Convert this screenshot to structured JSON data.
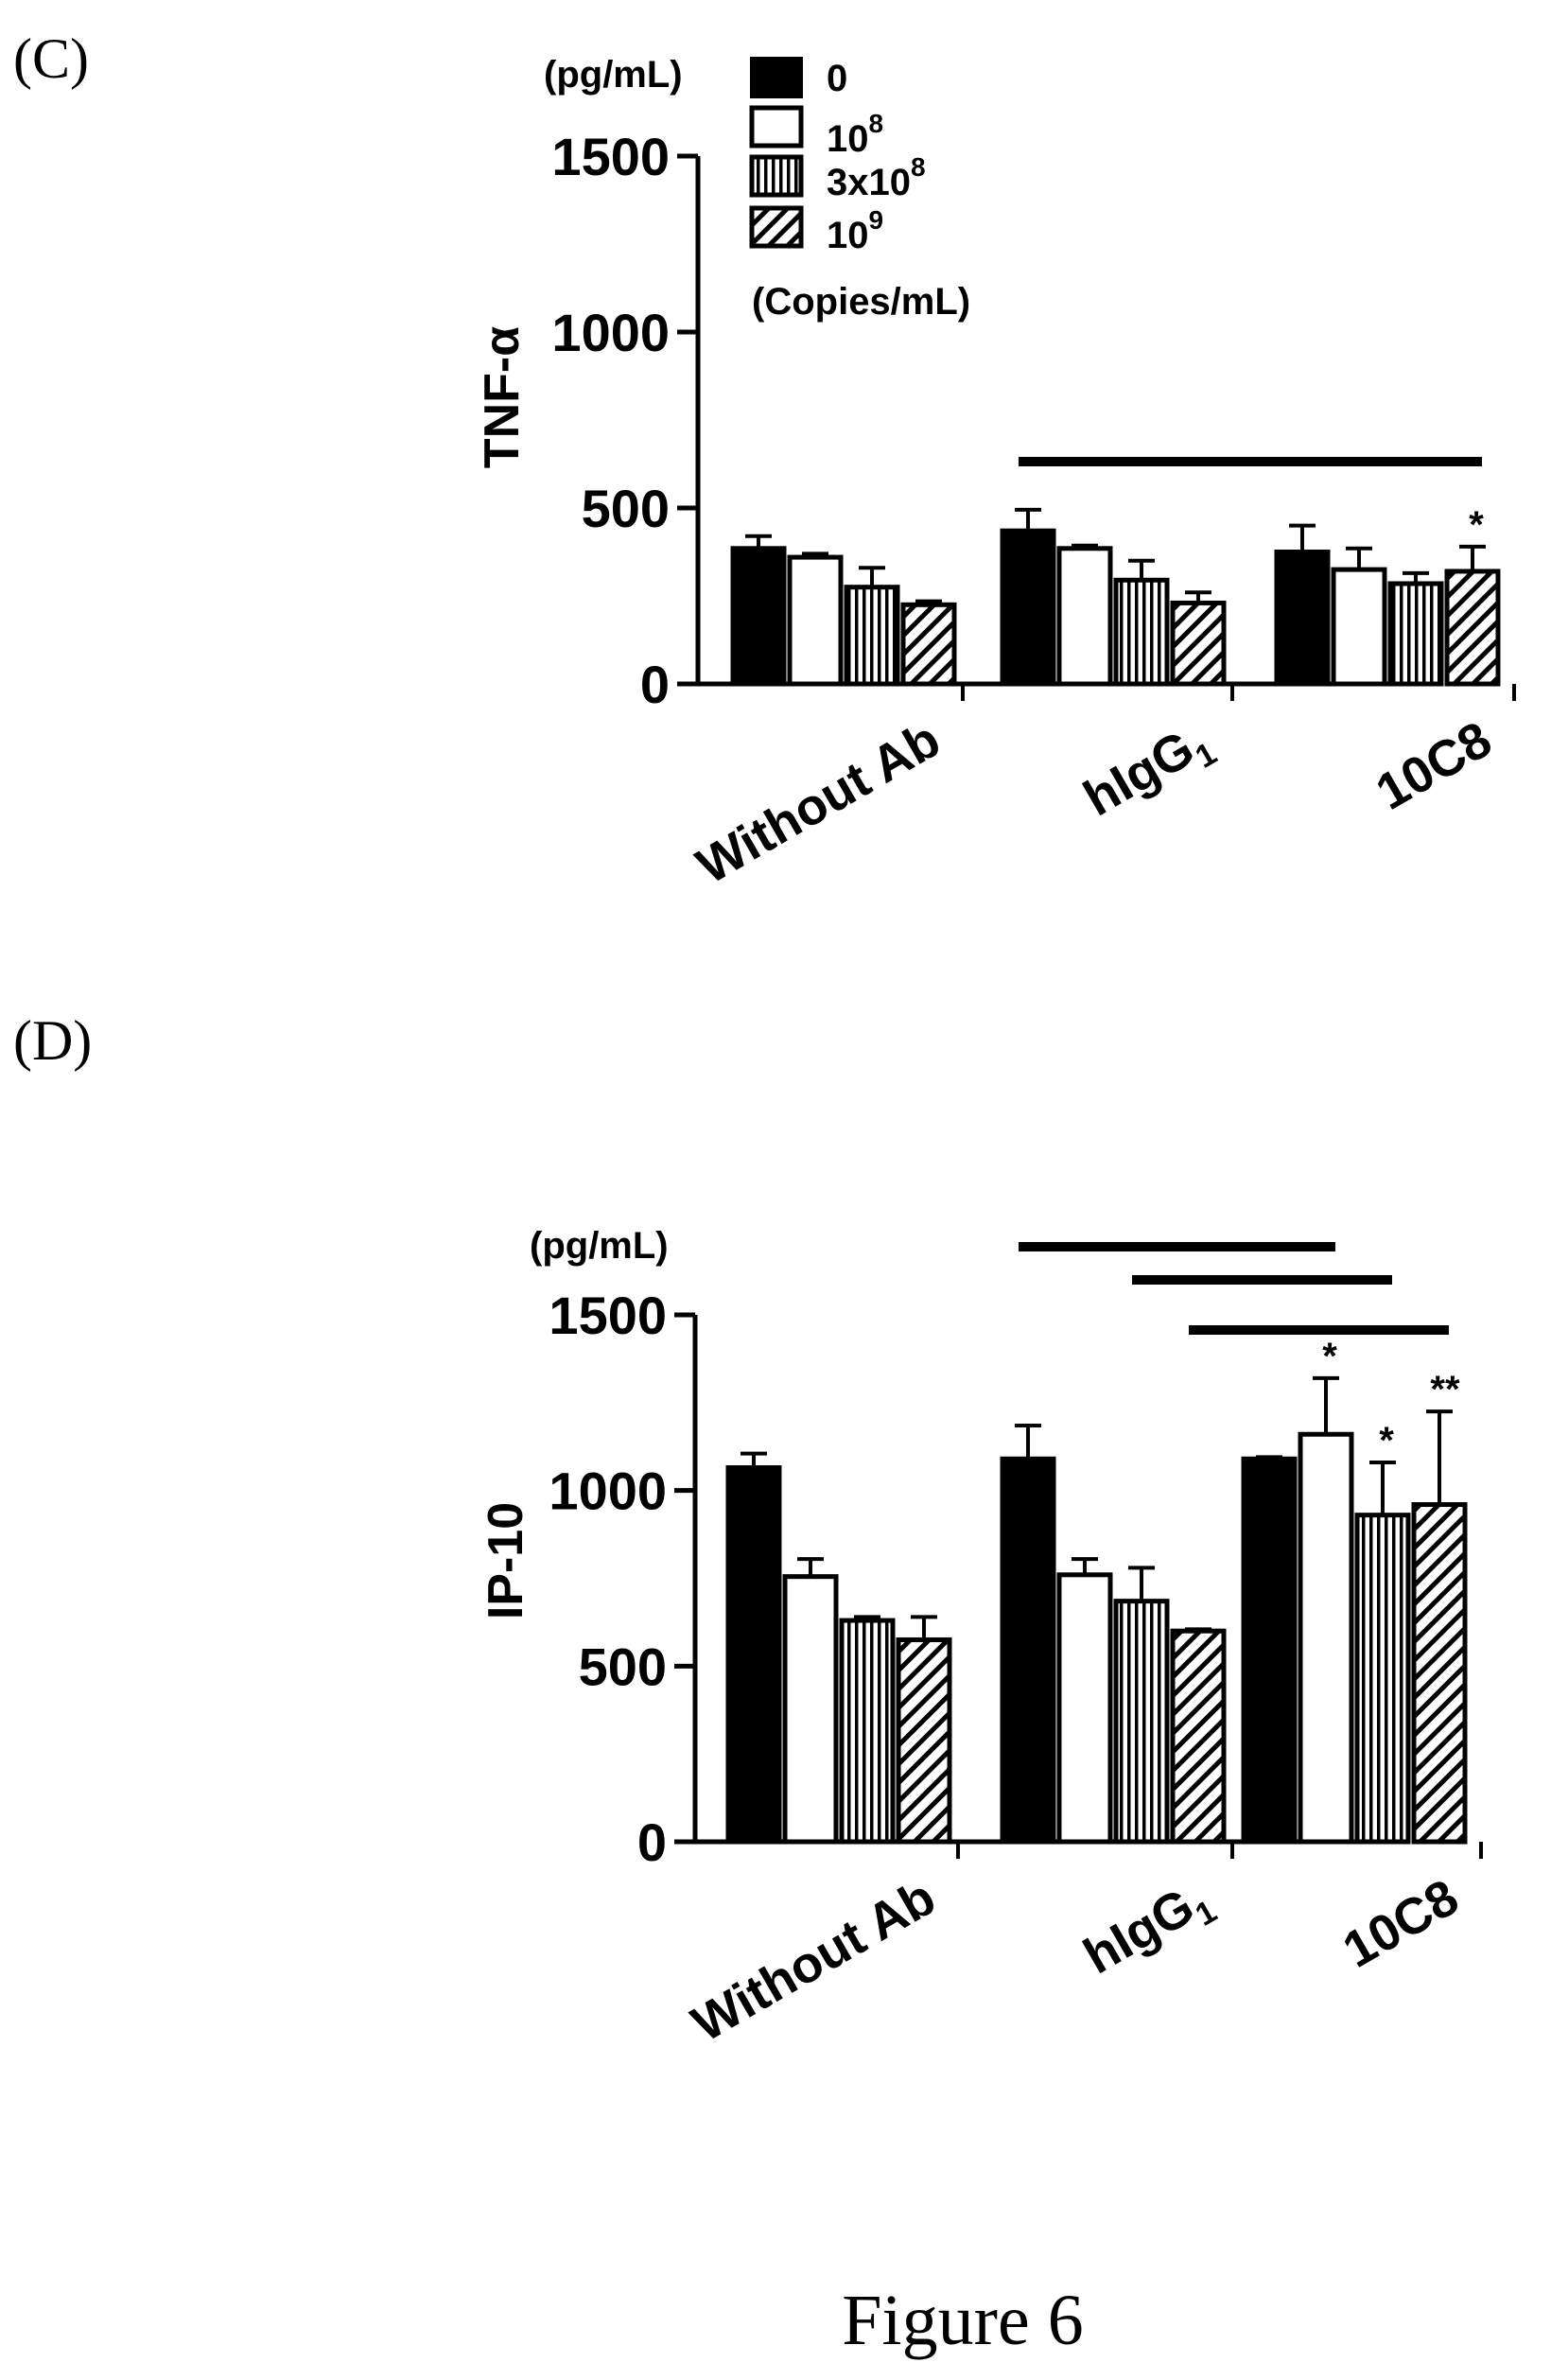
{
  "figure_caption": "Figure 6",
  "legend": {
    "title": "(Copies/mL)",
    "items": [
      {
        "label": "0",
        "base": "0",
        "exp": "",
        "fill": "solid"
      },
      {
        "label": "10^8",
        "base": "10",
        "exp": "8",
        "fill": "open"
      },
      {
        "label": "3x10^8",
        "base": "3x10",
        "exp": "8",
        "fill": "vertical"
      },
      {
        "label": "10^9",
        "base": "10",
        "exp": "9",
        "fill": "diagonal"
      }
    ]
  },
  "chart_data": [
    {
      "panel": "(C)",
      "type": "bar",
      "ylabel": "TNF-α",
      "unit": "(pg/mL)",
      "categories": [
        "Without Ab",
        "hIgG1",
        "10C8"
      ],
      "ylim": [
        0,
        1500
      ],
      "yticks": [
        0,
        500,
        1000,
        1500
      ],
      "series": [
        {
          "name": "0",
          "fill": "solid",
          "values": [
            385,
            435,
            375
          ],
          "errors": [
            35,
            60,
            75
          ]
        },
        {
          "name": "10^8",
          "fill": "open",
          "values": [
            360,
            385,
            325
          ],
          "errors": [
            10,
            8,
            60
          ]
        },
        {
          "name": "3x10^8",
          "fill": "vertical",
          "values": [
            275,
            295,
            285
          ],
          "errors": [
            55,
            55,
            30
          ]
        },
        {
          "name": "10^9",
          "fill": "diagonal",
          "values": [
            225,
            230,
            320
          ],
          "errors": [
            10,
            30,
            70
          ]
        }
      ],
      "significance_bars": [
        {
          "from": [
            1,
            0
          ],
          "to": [
            2,
            3
          ]
        }
      ],
      "stars": [
        {
          "category": 2,
          "series": 3,
          "text": "*"
        }
      ]
    },
    {
      "panel": "(D)",
      "type": "bar",
      "ylabel": "IP-10",
      "unit": "(pg/mL)",
      "categories": [
        "Without Ab",
        "hIgG1",
        "10C8"
      ],
      "ylim": [
        0,
        1500
      ],
      "yticks": [
        0,
        500,
        1000,
        1500
      ],
      "series": [
        {
          "name": "0",
          "fill": "solid",
          "values": [
            1065,
            1090,
            1090
          ],
          "errors": [
            40,
            95,
            5
          ]
        },
        {
          "name": "10^8",
          "fill": "open",
          "values": [
            755,
            760,
            1160
          ],
          "errors": [
            50,
            45,
            160
          ]
        },
        {
          "name": "3x10^8",
          "fill": "vertical",
          "values": [
            630,
            685,
            930
          ],
          "errors": [
            10,
            95,
            150
          ]
        },
        {
          "name": "10^9",
          "fill": "diagonal",
          "values": [
            575,
            600,
            960
          ],
          "errors": [
            65,
            5,
            265
          ]
        }
      ],
      "significance_bars": [
        {
          "from": [
            1,
            0
          ],
          "to": [
            2,
            1
          ]
        },
        {
          "from": [
            1,
            2
          ],
          "to": [
            2,
            2
          ]
        },
        {
          "from": [
            1,
            3
          ],
          "to": [
            2,
            3
          ]
        }
      ],
      "stars": [
        {
          "category": 2,
          "series": 1,
          "text": "*"
        },
        {
          "category": 2,
          "series": 2,
          "text": "*"
        },
        {
          "category": 2,
          "series": 3,
          "text": "**"
        }
      ]
    }
  ]
}
